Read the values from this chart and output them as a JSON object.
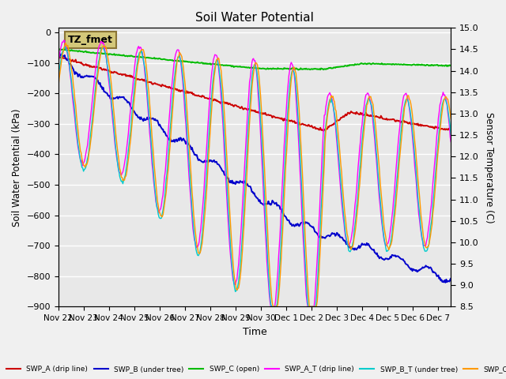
{
  "title": "Soil Water Potential",
  "ylabel_left": "Soil Water Potential (kPa)",
  "ylabel_right": "Sensor Temperature (C)",
  "xlabel": "Time",
  "ylim_left": [
    -900,
    15
  ],
  "ylim_right": [
    8.5,
    15.0
  ],
  "yticks_left": [
    0,
    -100,
    -200,
    -300,
    -400,
    -500,
    -600,
    -700,
    -800,
    -900
  ],
  "yticks_right": [
    8.5,
    9.0,
    9.5,
    10.0,
    10.5,
    11.0,
    11.5,
    12.0,
    12.5,
    13.0,
    13.5,
    14.0,
    14.5,
    15.0
  ],
  "background_outer": "#f0f0f0",
  "plot_bg_color": "#e8e8e8",
  "gray_band_color": "#d0d0d0",
  "grid_color": "#ffffff",
  "annotation_box": "TZ_fmet",
  "annotation_box_color": "#d4c87a",
  "annotation_box_edge": "#8B7536",
  "x_tick_labels": [
    "Nov 22",
    "Nov 23",
    "Nov 24",
    "Nov 25",
    "Nov 26",
    "Nov 27",
    "Nov 28",
    "Nov 29",
    "Nov 30",
    "Dec 1",
    "Dec 2",
    "Dec 3",
    "Dec 4",
    "Dec 5",
    "Dec 6",
    "Dec 7"
  ],
  "x_tick_positions": [
    0,
    1,
    2,
    3,
    4,
    5,
    6,
    7,
    8,
    9,
    10,
    11,
    12,
    13,
    14,
    15
  ],
  "colors": {
    "swp_a": "#cc0000",
    "swp_b": "#0000cc",
    "swp_c": "#00bb00",
    "swp_at": "#ff00ff",
    "swp_bt": "#00cccc",
    "swp_ct": "#ff9900"
  }
}
